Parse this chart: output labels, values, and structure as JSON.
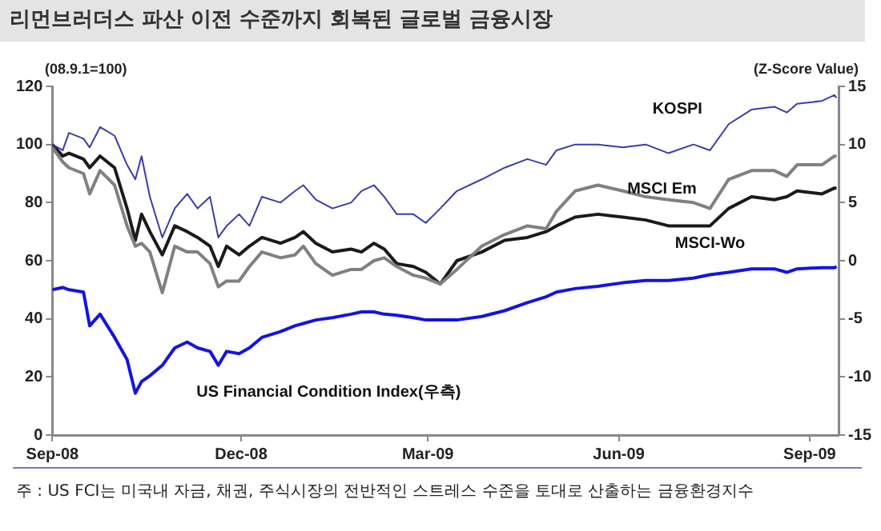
{
  "chart_data": {
    "type": "line",
    "title": "리먼브러더스 파산 이전 수준까지 회복된 글로벌 금융시장",
    "ylabel": "(08.9.1=100)",
    "y2label": "(Z-Score Value)",
    "x": [
      "2008-09-01",
      "2008-09-06",
      "2008-09-09",
      "2008-09-16",
      "2008-09-19",
      "2008-09-24",
      "2008-10-01",
      "2008-10-07",
      "2008-10-11",
      "2008-10-14",
      "2008-10-18",
      "2008-10-24",
      "2008-10-30",
      "2008-11-05",
      "2008-11-10",
      "2008-11-16",
      "2008-11-20",
      "2008-11-24",
      "2008-11-30",
      "2008-12-05",
      "2008-12-11",
      "2008-12-20",
      "2008-12-27",
      "2008-12-31",
      "2009-01-06",
      "2009-01-14",
      "2009-01-23",
      "2009-01-28",
      "2009-02-03",
      "2009-02-08",
      "2009-02-14",
      "2009-02-22",
      "2009-02-28",
      "2009-03-07",
      "2009-03-15",
      "2009-03-27",
      "2009-04-07",
      "2009-04-18",
      "2009-04-27",
      "2009-05-02",
      "2009-05-11",
      "2009-05-22",
      "2009-06-03",
      "2009-06-14",
      "2009-06-25",
      "2009-07-07",
      "2009-07-15",
      "2009-07-24",
      "2009-08-04",
      "2009-08-15",
      "2009-08-21",
      "2009-08-26",
      "2009-09-07",
      "2009-09-13",
      "2009-09-14"
    ],
    "series": [
      {
        "name": "KOSPI",
        "color": "#3c3ca8",
        "values": [
          100,
          98,
          104,
          102,
          99,
          106,
          103,
          93,
          88,
          96,
          82,
          68,
          78,
          83,
          78,
          82,
          68,
          72,
          76,
          72,
          82,
          80,
          84,
          86,
          81,
          78,
          80,
          84,
          86,
          82,
          76,
          76,
          73,
          78,
          84,
          88,
          92,
          95,
          93,
          98,
          100,
          100,
          99,
          100,
          97,
          100,
          98,
          107,
          112,
          113,
          111,
          114,
          115,
          117,
          116
        ]
      },
      {
        "name": "MSCI Em",
        "color": "#808080",
        "values": [
          99,
          94,
          92,
          90,
          83,
          91,
          86,
          72,
          65,
          66,
          63,
          49,
          65,
          63,
          63,
          59,
          51,
          53,
          53,
          58,
          63,
          61,
          62,
          65,
          59,
          55,
          57,
          57,
          60,
          61,
          58,
          55,
          54,
          52,
          57,
          65,
          69,
          72,
          71,
          77,
          84,
          86,
          84,
          82,
          81,
          80,
          78,
          88,
          91,
          91,
          89,
          93,
          93,
          96,
          96
        ]
      },
      {
        "name": "MSCI-Wo",
        "color": "#1a1a1a",
        "values": [
          100,
          96,
          97,
          95,
          92,
          96,
          92,
          78,
          67,
          76,
          70,
          62,
          72,
          70,
          68,
          65,
          58,
          65,
          62,
          65,
          68,
          66,
          68,
          70,
          66,
          63,
          64,
          63,
          66,
          64,
          59,
          58,
          56,
          52,
          60,
          63,
          67,
          68,
          70,
          72,
          75,
          76,
          75,
          74,
          72,
          72,
          72,
          78,
          82,
          81,
          82,
          84,
          83,
          85,
          85
        ]
      },
      {
        "name": "US Financial Condition Index(우측)",
        "color": "#1414e0",
        "axis": "y2",
        "values": [
          -2.5,
          -2.3,
          -2.5,
          -2.7,
          -5.6,
          -4.6,
          -6.6,
          -8.5,
          -11.4,
          -10.4,
          -9.9,
          -9,
          -7.5,
          -7,
          -7.5,
          -7.8,
          -9,
          -7.8,
          -8,
          -7.5,
          -6.6,
          -6.1,
          -5.6,
          -5.4,
          -5.1,
          -4.9,
          -4.6,
          -4.4,
          -4.4,
          -4.6,
          -4.7,
          -4.9,
          -5.1,
          -5.1,
          -5.1,
          -4.8,
          -4.3,
          -3.6,
          -3.1,
          -2.7,
          -2.4,
          -2.2,
          -1.9,
          -1.7,
          -1.7,
          -1.5,
          -1.2,
          -1,
          -0.7,
          -0.7,
          -1,
          -0.7,
          -0.6,
          -0.6,
          -0.5
        ]
      }
    ],
    "xlim": [
      "2008-09-01",
      "2009-09-15"
    ],
    "xticks": [
      {
        "value": "2008-09-01",
        "label": "Sep-08"
      },
      {
        "value": "2008-12-01",
        "label": "Dec-08"
      },
      {
        "value": "2009-03-01",
        "label": "Mar-09"
      },
      {
        "value": "2009-06-01",
        "label": "Jun-09"
      },
      {
        "value": "2009-09-01",
        "label": "Sep-09"
      }
    ],
    "ylim": [
      0,
      120
    ],
    "yticks": [
      0,
      20,
      40,
      60,
      80,
      100,
      120
    ],
    "y2lim": [
      -15,
      15
    ],
    "y2ticks": [
      -15,
      -10,
      -5,
      0,
      5,
      10,
      15
    ],
    "grid": false,
    "legend": false,
    "marker": "none",
    "line_style": "solid",
    "annotations": [
      "주 : US FCI는 미국내 자금, 채권, 주식시장의 전반적인 스트레스 수준을 토대로 산출하는 금융환경지수"
    ]
  }
}
